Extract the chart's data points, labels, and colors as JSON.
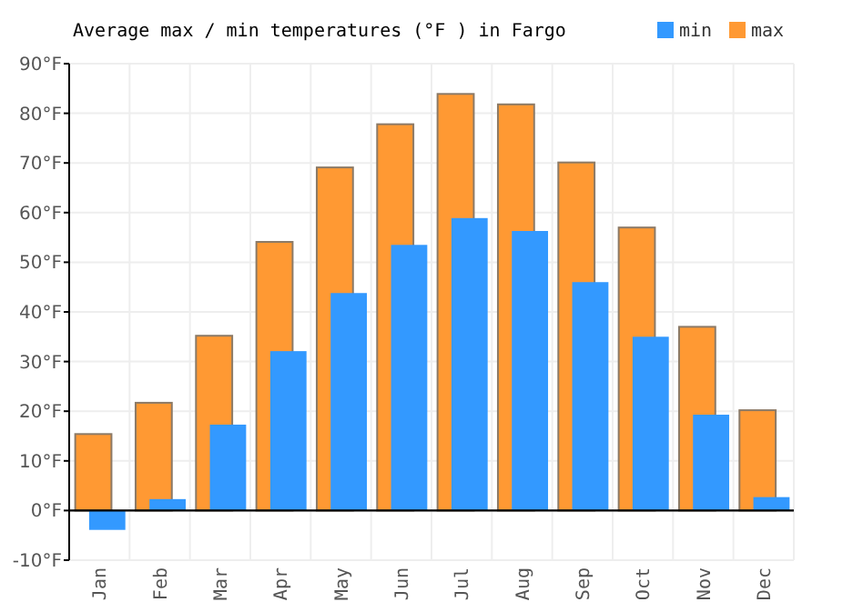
{
  "chart_data": {
    "type": "bar",
    "title": "Average max / min temperatures (°F ) in Fargo",
    "categories": [
      "Jan",
      "Feb",
      "Mar",
      "Apr",
      "May",
      "Jun",
      "Jul",
      "Aug",
      "Sep",
      "Oct",
      "Nov",
      "Dec"
    ],
    "series": [
      {
        "name": "min",
        "color": "#3399ff",
        "values": [
          -3.9,
          2.3,
          17.3,
          32.1,
          43.8,
          53.5,
          58.9,
          56.3,
          46.0,
          35.0,
          19.3,
          2.7
        ]
      },
      {
        "name": "max",
        "color": "#ff9933",
        "values": [
          15.4,
          21.7,
          35.2,
          54.1,
          69.1,
          77.8,
          83.9,
          81.8,
          70.1,
          57.0,
          37.0,
          20.2
        ]
      }
    ],
    "ylim": [
      -10,
      90
    ],
    "yticks": [
      {
        "value": -10,
        "label": "-10°F"
      },
      {
        "value": 0,
        "label": "0°F"
      },
      {
        "value": 10,
        "label": "10°F"
      },
      {
        "value": 20,
        "label": "20°F"
      },
      {
        "value": 30,
        "label": "30°F"
      },
      {
        "value": 40,
        "label": "40°F"
      },
      {
        "value": 50,
        "label": "50°F"
      },
      {
        "value": 60,
        "label": "60°F"
      },
      {
        "value": 70,
        "label": "70°F"
      },
      {
        "value": 80,
        "label": "80°F"
      },
      {
        "value": 90,
        "label": "90°F"
      }
    ],
    "grid": true,
    "legend": "top right"
  }
}
